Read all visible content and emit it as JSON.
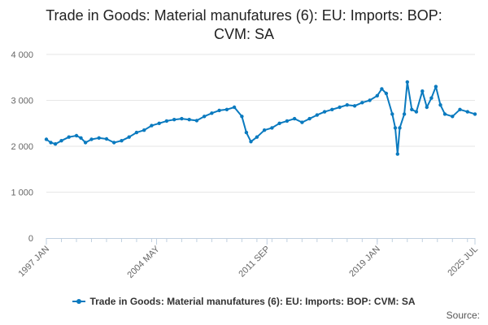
{
  "chart_data": {
    "type": "line",
    "title": "Trade in Goods: Material manufatures (6): EU: Imports: BOP: CVM: SA",
    "xlabel": "",
    "ylabel": "",
    "ylim": [
      0,
      4000
    ],
    "y_ticks": [
      "0",
      "1 000",
      "2 000",
      "3 000",
      "4 000"
    ],
    "y_tick_values": [
      0,
      1000,
      2000,
      3000,
      4000
    ],
    "x_tick_labels": [
      "1997 JAN",
      "2004 MAY",
      "2011 SEP",
      "2019 JAN",
      "2025 JUL"
    ],
    "x_tick_positions": [
      1997.0,
      2004.33,
      2011.67,
      2019.0,
      2025.5
    ],
    "x_range": [
      1997.0,
      2025.5
    ],
    "legend_position": "bottom",
    "grid": true,
    "series": [
      {
        "name": "Trade in Goods: Material manufatures (6): EU: Imports: BOP: CVM: SA",
        "color": "#0a7abf",
        "points": [
          [
            1997.0,
            2150
          ],
          [
            1997.3,
            2080
          ],
          [
            1997.6,
            2050
          ],
          [
            1998.0,
            2120
          ],
          [
            1998.5,
            2200
          ],
          [
            1999.0,
            2230
          ],
          [
            1999.3,
            2180
          ],
          [
            1999.6,
            2080
          ],
          [
            2000.0,
            2150
          ],
          [
            2000.5,
            2180
          ],
          [
            2001.0,
            2160
          ],
          [
            2001.5,
            2080
          ],
          [
            2002.0,
            2120
          ],
          [
            2002.5,
            2200
          ],
          [
            2003.0,
            2300
          ],
          [
            2003.5,
            2350
          ],
          [
            2004.0,
            2450
          ],
          [
            2004.5,
            2500
          ],
          [
            2005.0,
            2550
          ],
          [
            2005.5,
            2580
          ],
          [
            2006.0,
            2600
          ],
          [
            2006.5,
            2580
          ],
          [
            2007.0,
            2560
          ],
          [
            2007.5,
            2650
          ],
          [
            2008.0,
            2720
          ],
          [
            2008.5,
            2780
          ],
          [
            2009.0,
            2800
          ],
          [
            2009.5,
            2850
          ],
          [
            2010.0,
            2650
          ],
          [
            2010.3,
            2300
          ],
          [
            2010.6,
            2100
          ],
          [
            2011.0,
            2200
          ],
          [
            2011.5,
            2350
          ],
          [
            2012.0,
            2400
          ],
          [
            2012.5,
            2500
          ],
          [
            2013.0,
            2550
          ],
          [
            2013.5,
            2600
          ],
          [
            2014.0,
            2520
          ],
          [
            2014.5,
            2600
          ],
          [
            2015.0,
            2680
          ],
          [
            2015.5,
            2750
          ],
          [
            2016.0,
            2800
          ],
          [
            2016.5,
            2850
          ],
          [
            2017.0,
            2900
          ],
          [
            2017.5,
            2880
          ],
          [
            2018.0,
            2950
          ],
          [
            2018.5,
            3000
          ],
          [
            2019.0,
            3100
          ],
          [
            2019.3,
            3250
          ],
          [
            2019.6,
            3150
          ],
          [
            2020.0,
            2700
          ],
          [
            2020.2,
            2400
          ],
          [
            2020.35,
            1830
          ],
          [
            2020.5,
            2400
          ],
          [
            2020.8,
            2700
          ],
          [
            2021.0,
            3400
          ],
          [
            2021.3,
            2800
          ],
          [
            2021.6,
            2750
          ],
          [
            2022.0,
            3200
          ],
          [
            2022.3,
            2850
          ],
          [
            2022.6,
            3050
          ],
          [
            2022.9,
            3300
          ],
          [
            2023.2,
            2900
          ],
          [
            2023.5,
            2700
          ],
          [
            2024.0,
            2650
          ],
          [
            2024.5,
            2800
          ],
          [
            2025.0,
            2750
          ],
          [
            2025.5,
            2700
          ]
        ]
      }
    ]
  },
  "footer": {
    "source_label": "Source:"
  }
}
